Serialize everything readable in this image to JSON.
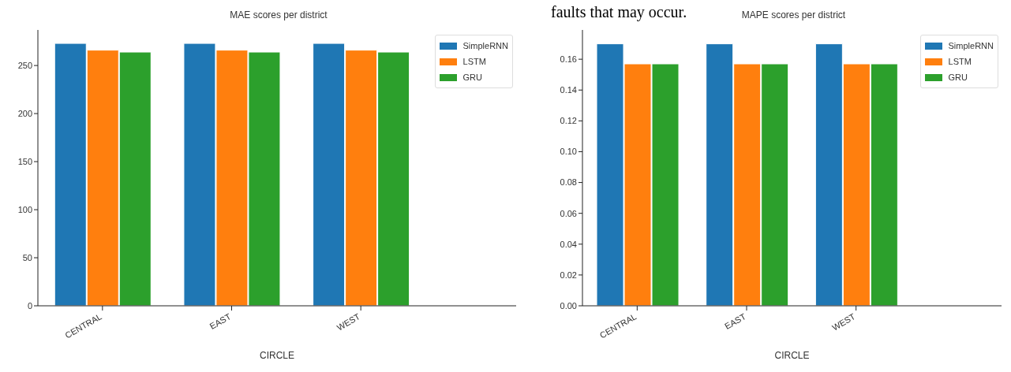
{
  "chart_data": [
    {
      "type": "bar",
      "title": "MAE scores per district",
      "xlabel": "CIRCLE",
      "categories": [
        "CENTRAL",
        "EAST",
        "WEST"
      ],
      "series": [
        {
          "name": "SimpleRNN",
          "color": "#1f77b4",
          "values": [
            273,
            273,
            273
          ]
        },
        {
          "name": "LSTM",
          "color": "#ff7f0e",
          "values": [
            266,
            266,
            266
          ]
        },
        {
          "name": "GRU",
          "color": "#2ca02c",
          "values": [
            264,
            264,
            264
          ]
        }
      ],
      "ylim": [
        0,
        287
      ],
      "yticks": [
        0,
        50,
        100,
        150,
        200,
        250
      ],
      "legend": "top right"
    },
    {
      "type": "bar",
      "title": "MAPE scores per district",
      "xlabel": "CIRCLE",
      "categories": [
        "CENTRAL",
        "EAST",
        "WEST"
      ],
      "series": [
        {
          "name": "SimpleRNN",
          "color": "#1f77b4",
          "values": [
            0.17,
            0.17,
            0.17
          ]
        },
        {
          "name": "LSTM",
          "color": "#ff7f0e",
          "values": [
            0.157,
            0.157,
            0.157
          ]
        },
        {
          "name": "GRU",
          "color": "#2ca02c",
          "values": [
            0.157,
            0.157,
            0.157
          ]
        }
      ],
      "ylim": [
        0,
        0.179
      ],
      "yticks": [
        {
          "value": 0,
          "label": "0.00"
        },
        {
          "value": 0.02,
          "label": "0.02"
        },
        {
          "value": 0.04,
          "label": "0.04"
        },
        {
          "value": 0.06,
          "label": "0.06"
        },
        {
          "value": 0.08,
          "label": "0.08"
        },
        {
          "value": 0.1,
          "label": "0.10"
        },
        {
          "value": 0.12,
          "label": "0.12"
        },
        {
          "value": 0.14,
          "label": "0.14"
        },
        {
          "value": 0.16,
          "label": "0.16"
        }
      ],
      "legend": "top right",
      "annotations": [
        "faults that may occur."
      ]
    }
  ]
}
